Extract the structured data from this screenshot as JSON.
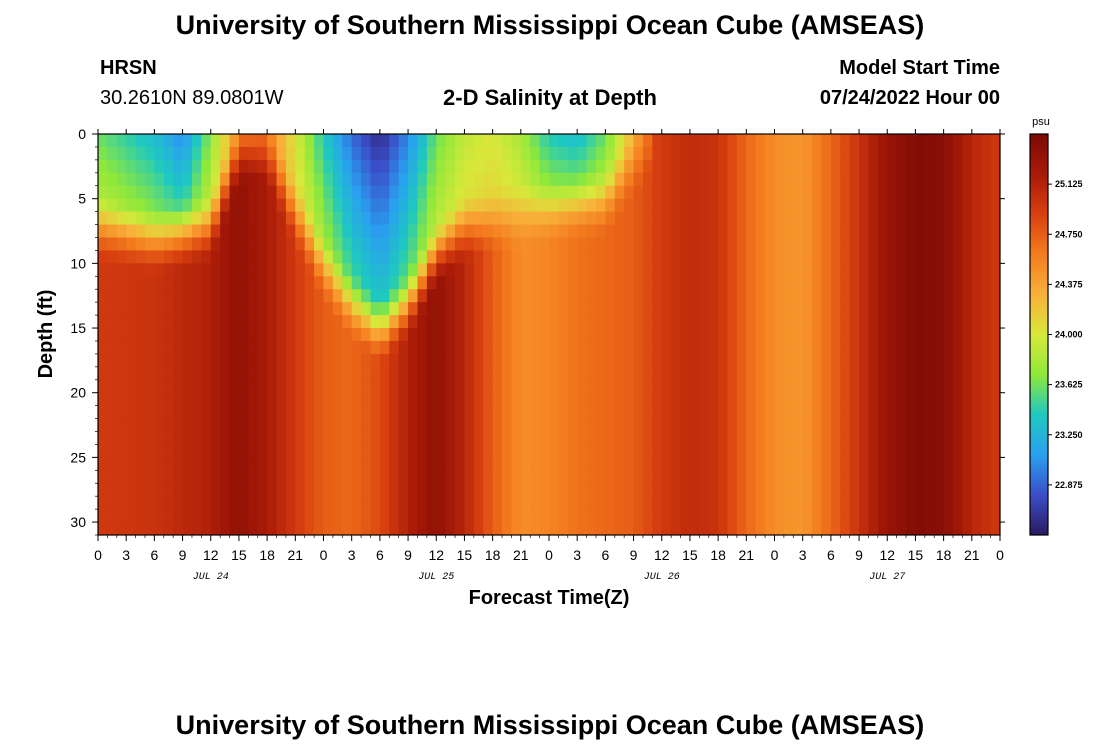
{
  "header": {
    "title": "University of Southern Mississippi Ocean Cube (AMSEAS)",
    "station": "HRSN",
    "coords": "30.2610N  89.0801W",
    "plot_title": "2-D Salinity at Depth",
    "model_start_label": "Model Start Time",
    "model_start_value": "07/24/2022 Hour 00"
  },
  "footer": {
    "title": "University of Southern Mississippi Ocean Cube (AMSEAS)"
  },
  "chart_data": {
    "type": "heatmap",
    "title": "2-D Salinity at Depth",
    "xlabel": "Forecast Time(Z)",
    "ylabel": "Depth (ft)",
    "x_hours": [
      0,
      96
    ],
    "y_range": [
      0,
      31
    ],
    "x_tick_labels": [
      "0",
      "3",
      "6",
      "9",
      "12",
      "15",
      "18",
      "21",
      "0",
      "3",
      "6",
      "9",
      "12",
      "15",
      "18",
      "21",
      "0",
      "3",
      "6",
      "9",
      "12",
      "15",
      "18",
      "21",
      "0",
      "3",
      "6",
      "9",
      "12",
      "15",
      "18",
      "21",
      "0"
    ],
    "y_ticks": [
      0,
      5,
      10,
      15,
      20,
      25,
      30
    ],
    "date_labels": [
      {
        "label": "JUL 24",
        "hour": 12
      },
      {
        "label": "JUL 25",
        "hour": 36
      },
      {
        "label": "JUL 26",
        "hour": 60
      },
      {
        "label": "JUL 27",
        "hour": 84
      }
    ],
    "colorbar": {
      "unit": "psu",
      "min": 22.5,
      "max": 25.5,
      "ticks": [
        "25.125",
        "24.750",
        "24.375",
        "24.000",
        "23.625",
        "23.250",
        "22.875"
      ],
      "tick_values": [
        25.125,
        24.75,
        24.375,
        24.0,
        23.625,
        23.25,
        22.875
      ]
    },
    "surface_salinity_by_hour": [
      {
        "hour": 0,
        "value": 23.6
      },
      {
        "hour": 6,
        "value": 23.3
      },
      {
        "hour": 9,
        "value": 23.0
      },
      {
        "hour": 12,
        "value": 23.7
      },
      {
        "hour": 15,
        "value": 24.5
      },
      {
        "hour": 18,
        "value": 24.6
      },
      {
        "hour": 21,
        "value": 24.0
      },
      {
        "hour": 24,
        "value": 23.4
      },
      {
        "hour": 27,
        "value": 22.9
      },
      {
        "hour": 30,
        "value": 22.6
      },
      {
        "hour": 33,
        "value": 23.0
      },
      {
        "hour": 36,
        "value": 23.6
      },
      {
        "hour": 39,
        "value": 23.9
      },
      {
        "hour": 42,
        "value": 24.0
      },
      {
        "hour": 45,
        "value": 23.8
      },
      {
        "hour": 48,
        "value": 23.4
      },
      {
        "hour": 51,
        "value": 23.3
      },
      {
        "hour": 54,
        "value": 23.6
      },
      {
        "hour": 57,
        "value": 24.3
      },
      {
        "hour": 60,
        "value": 24.9
      },
      {
        "hour": 66,
        "value": 25.0
      },
      {
        "hour": 72,
        "value": 24.6
      },
      {
        "hour": 78,
        "value": 24.7
      },
      {
        "hour": 84,
        "value": 25.2
      },
      {
        "hour": 88,
        "value": 25.4
      },
      {
        "hour": 92,
        "value": 25.1
      },
      {
        "hour": 96,
        "value": 24.9
      }
    ],
    "fresh_layer_depth_ft_by_hour": [
      {
        "hour": 0,
        "depth": 8
      },
      {
        "hour": 6,
        "depth": 9
      },
      {
        "hour": 12,
        "depth": 8
      },
      {
        "hour": 15,
        "depth": 2
      },
      {
        "hour": 18,
        "depth": 2
      },
      {
        "hour": 21,
        "depth": 7
      },
      {
        "hour": 24,
        "depth": 11
      },
      {
        "hour": 27,
        "depth": 14
      },
      {
        "hour": 30,
        "depth": 16
      },
      {
        "hour": 33,
        "depth": 14
      },
      {
        "hour": 36,
        "depth": 10
      },
      {
        "hour": 39,
        "depth": 8
      },
      {
        "hour": 45,
        "depth": 7
      },
      {
        "hour": 54,
        "depth": 6
      },
      {
        "hour": 57,
        "depth": 3
      },
      {
        "hour": 60,
        "depth": 0
      },
      {
        "hour": 96,
        "depth": 0
      }
    ],
    "deep_salinity_by_hour": [
      {
        "hour": 0,
        "value": 24.95
      },
      {
        "hour": 6,
        "value": 25.0
      },
      {
        "hour": 12,
        "value": 25.15
      },
      {
        "hour": 15,
        "value": 25.35
      },
      {
        "hour": 18,
        "value": 25.2
      },
      {
        "hour": 21,
        "value": 24.95
      },
      {
        "hour": 24,
        "value": 24.75
      },
      {
        "hour": 27,
        "value": 24.7
      },
      {
        "hour": 30,
        "value": 24.85
      },
      {
        "hour": 33,
        "value": 25.15
      },
      {
        "hour": 36,
        "value": 25.35
      },
      {
        "hour": 39,
        "value": 25.1
      },
      {
        "hour": 42,
        "value": 24.75
      },
      {
        "hour": 45,
        "value": 24.5
      },
      {
        "hour": 48,
        "value": 24.55
      },
      {
        "hour": 51,
        "value": 24.65
      },
      {
        "hour": 54,
        "value": 24.7
      },
      {
        "hour": 57,
        "value": 24.75
      },
      {
        "hour": 60,
        "value": 24.95
      },
      {
        "hour": 63,
        "value": 25.05
      },
      {
        "hour": 66,
        "value": 25.0
      },
      {
        "hour": 69,
        "value": 24.7
      },
      {
        "hour": 72,
        "value": 24.5
      },
      {
        "hour": 75,
        "value": 24.45
      },
      {
        "hour": 78,
        "value": 24.7
      },
      {
        "hour": 81,
        "value": 25.0
      },
      {
        "hour": 84,
        "value": 25.3
      },
      {
        "hour": 87,
        "value": 25.45
      },
      {
        "hour": 90,
        "value": 25.4
      },
      {
        "hour": 93,
        "value": 25.1
      },
      {
        "hour": 96,
        "value": 24.95
      }
    ],
    "colors": [
      "#2a1a5e",
      "#3b4ec9",
      "#2aa0f0",
      "#1ec9c0",
      "#8fe83a",
      "#d8e83a",
      "#f8b03a",
      "#f47c1e",
      "#d84010",
      "#a81a08",
      "#7a0a04"
    ]
  }
}
